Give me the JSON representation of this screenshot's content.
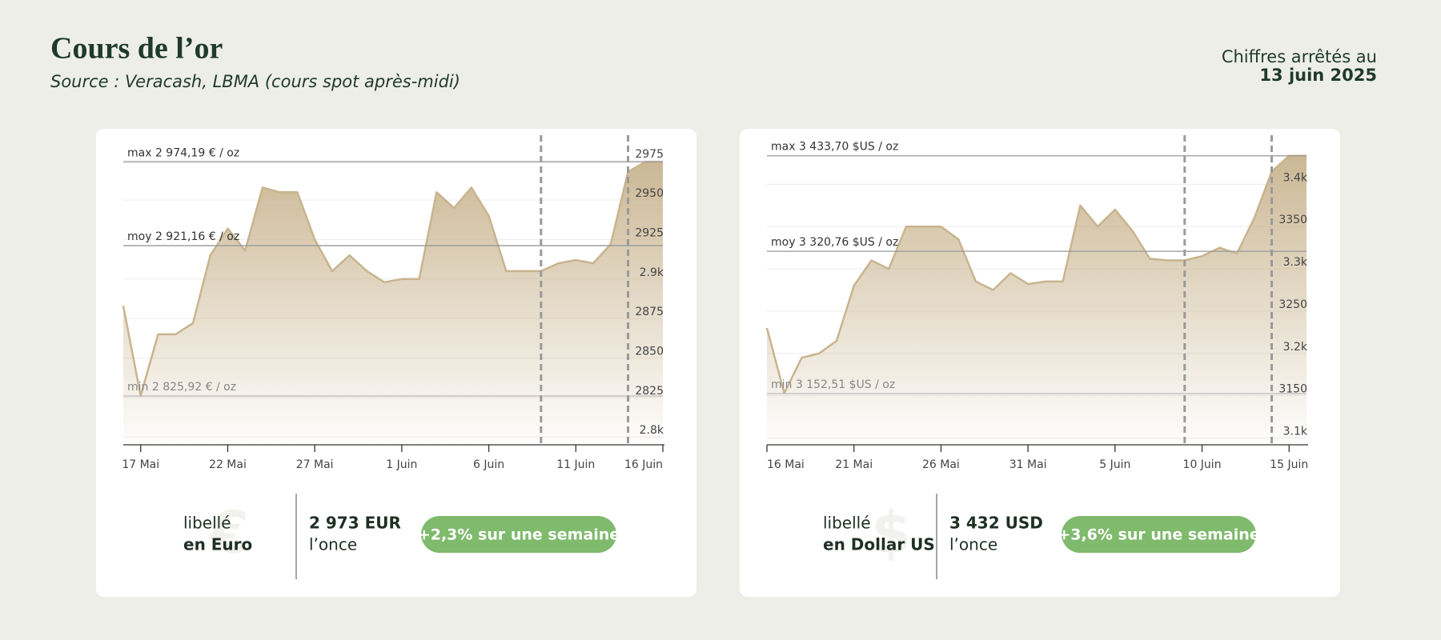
{
  "header": {
    "title": "Cours de l’or",
    "subtitle": "Source : Veracash, LBMA (cours spot après-midi)",
    "date_prefix": "Chiffres arrêtés au",
    "date": "13 juin 2025"
  },
  "chart_data": [
    {
      "type": "area",
      "color": "#c8b48e",
      "categories": [
        null,
        "17 Mai",
        null,
        null,
        null,
        null,
        "22 Mai",
        null,
        null,
        null,
        null,
        "27 Mai",
        null,
        null,
        null,
        null,
        "1 Juin",
        null,
        null,
        null,
        null,
        "6 Juin",
        null,
        null,
        null,
        null,
        "11 Juin",
        null,
        null,
        null,
        null,
        "16 Juin"
      ],
      "values": [
        2883,
        2826,
        2865,
        2865,
        2872,
        2915,
        2932,
        2918,
        2958,
        2955,
        2955,
        2925,
        2905,
        2915,
        2905,
        2898,
        2900,
        2900,
        2955,
        2945,
        2958,
        2940,
        2905,
        2905,
        2905,
        2910,
        2912,
        2910,
        2922,
        2968,
        2974.19,
        2974.19
      ],
      "ylim": [
        2795,
        2982
      ],
      "yticks": [
        {
          "value": 2800,
          "label": "2.8k"
        },
        2825,
        2850,
        2875,
        {
          "value": 2900,
          "label": "2.9k"
        },
        2925,
        2950,
        2975
      ],
      "grid": true,
      "annotations": [
        {
          "value": 2974.19,
          "label": "max 2 974,19 € / oz"
        },
        {
          "value": 2921.16,
          "label": "moy 2 921,16 € / oz"
        },
        {
          "value": 2825.92,
          "label": "min 2 825,92 € / oz"
        }
      ],
      "footer": {
        "symbol": "€",
        "label_top": "libellé",
        "label_bottom": "en Euro",
        "price": "2 973 EUR",
        "unit": "l’once",
        "change": "+2,3% sur une semaine"
      }
    },
    {
      "type": "area",
      "color": "#c8b48e",
      "categories": [
        "16 Mai",
        null,
        null,
        null,
        null,
        "21 Mai",
        null,
        null,
        null,
        null,
        "26 Mai",
        null,
        null,
        null,
        null,
        "31 Mai",
        null,
        null,
        null,
        null,
        "5 Juin",
        null,
        null,
        null,
        null,
        "10 Juin",
        null,
        null,
        null,
        null,
        "15 Juin",
        null
      ],
      "values": [
        3230,
        3153,
        3195,
        3200,
        3215,
        3280,
        3310,
        3300,
        3350,
        3350,
        3350,
        3335,
        3285,
        3275,
        3295,
        3282,
        3285,
        3285,
        3375,
        3350,
        3370,
        3345,
        3312,
        3310,
        3310,
        3315,
        3325,
        3318,
        3360,
        3415,
        3433.7,
        3433.7
      ],
      "ylim": [
        3092,
        3441
      ],
      "yticks": [
        {
          "value": 3100,
          "label": "3.1k"
        },
        3150,
        {
          "value": 3200,
          "label": "3.2k"
        },
        3250,
        {
          "value": 3300,
          "label": "3.3k"
        },
        3350,
        {
          "value": 3400,
          "label": "3.4k"
        }
      ],
      "grid": true,
      "annotations": [
        {
          "value": 3433.7,
          "label": "max 3 433,70 $US / oz"
        },
        {
          "value": 3320.76,
          "label": "moy 3 320,76 $US / oz"
        },
        {
          "value": 3152.51,
          "label": "min 3 152,51 $US / oz"
        }
      ],
      "footer": {
        "symbol": "$",
        "label_top": "libellé",
        "label_bottom": "en Dollar US",
        "price": "3 432 USD",
        "unit": "l’once",
        "change": "+3,6% sur une semaine"
      }
    }
  ]
}
